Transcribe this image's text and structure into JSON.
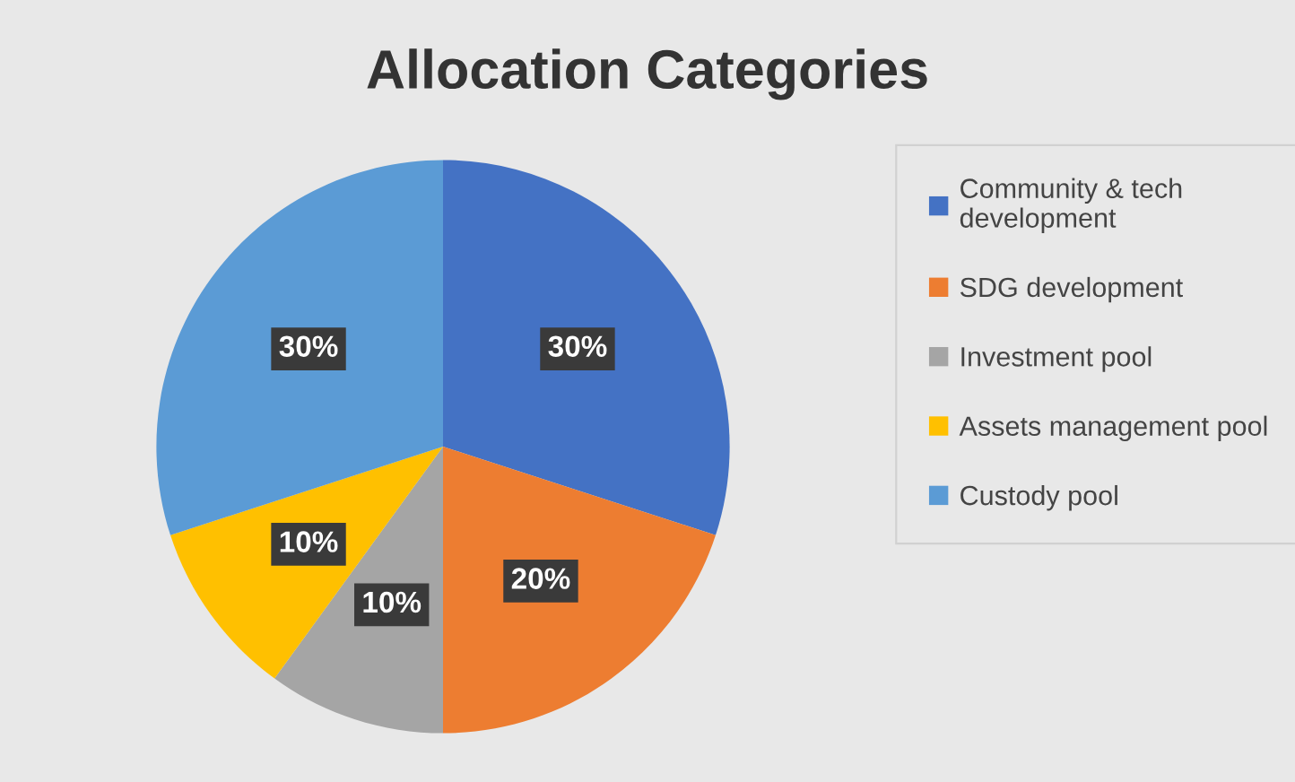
{
  "chart_data": {
    "type": "pie",
    "title": "Allocation Categories",
    "categories": [
      "Community & tech development",
      "SDG development",
      "Investment pool",
      "Assets management pool",
      "Custody pool"
    ],
    "values": [
      30,
      20,
      10,
      10,
      30
    ],
    "colors": [
      "#4472c4",
      "#ed7d31",
      "#a5a5a5",
      "#ffc000",
      "#5b9bd5"
    ],
    "value_labels": [
      "30%",
      "20%",
      "10%",
      "10%",
      "30%"
    ],
    "legend": "right"
  }
}
